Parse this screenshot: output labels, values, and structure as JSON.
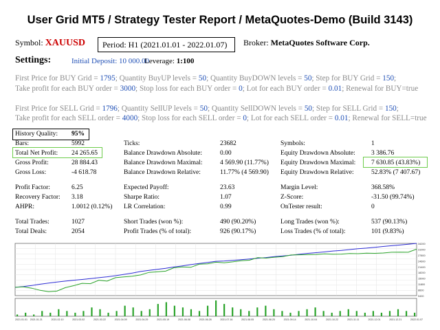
{
  "title": "User Grid MT5  /  Strategy Tester Report  /  MetaQuotes-Demo (Build 3143)",
  "symbol": {
    "label": "Symbol:",
    "value": "XAUUSD"
  },
  "period": {
    "label": "Period:",
    "value": "H1  (2021.01.01 - 2022.01.07)"
  },
  "broker": {
    "label": "Broker:",
    "value": "MetaQuotes Software Corp."
  },
  "settings": {
    "label": "Settings:",
    "deposit": "Initial Deposit:  10 000.00",
    "leverage_label": "Leverage:",
    "leverage_value": "1:100"
  },
  "params_buy": [
    [
      [
        "First Price for BUY Grid = ",
        "1795"
      ],
      [
        "; Quantity BuyUP levels = ",
        "50"
      ],
      [
        ";  Quantity BuyDOWN levels = ",
        "50"
      ],
      [
        ";  Step for BUY Grid = ",
        "150"
      ],
      [
        ";",
        ""
      ]
    ],
    [
      [
        "Take profit for each BUY order = ",
        "3000"
      ],
      [
        ";  Stop loss for each BUY order = ",
        "0"
      ],
      [
        ";  Lot for each BUY order = ",
        "0.01"
      ],
      [
        ";  Renewal for BUY=true",
        ""
      ]
    ]
  ],
  "params_sell": [
    [
      [
        "First Price for SELL Grid = ",
        "1796"
      ],
      [
        "; Quantity SellUP levels = ",
        "50"
      ],
      [
        ";  Quantity SellDOWN levels = ",
        "50"
      ],
      [
        ";  Step for SELL Grid = ",
        "150"
      ],
      [
        ";",
        ""
      ]
    ],
    [
      [
        "Take profit for each SELL order = ",
        "4000"
      ],
      [
        ";  Stop loss for each SELL order = ",
        "0"
      ],
      [
        ";  Lot for each SELL order = ",
        "0.01"
      ],
      [
        ";  Renewal for SELL=true",
        ""
      ]
    ]
  ],
  "history_quality": {
    "label": "History Quality:",
    "value": "95%"
  },
  "stats": {
    "bars": {
      "label": "Bars:",
      "value": "5992"
    },
    "net_profit": {
      "label": "Total Net Profit:",
      "value": "24 265.65"
    },
    "gross_profit": {
      "label": "Gross Profit:",
      "value": "28 884.43"
    },
    "gross_loss": {
      "label": "Gross Loss:",
      "value": "-4 618.78"
    },
    "ticks": {
      "label": "Ticks:",
      "value": "23682"
    },
    "bal_dd_abs": {
      "label": "Balance Drawdown Absolute:",
      "value": "0.00"
    },
    "bal_dd_max": {
      "label": "Balance Drawdown Maximal:",
      "value": "4 569.90 (11.77%)"
    },
    "bal_dd_rel": {
      "label": "Balance Drawdown Relative:",
      "value": "11.77% (4 569.90)"
    },
    "symbols": {
      "label": "Symbols:",
      "value": "1"
    },
    "eq_dd_abs": {
      "label": "Equity Drawdown Absolute:",
      "value": "3 386.76"
    },
    "eq_dd_max": {
      "label": "Equity Drawdown Maximal:",
      "value": "7 630.85 (43.83%)"
    },
    "eq_dd_rel": {
      "label": "Equity Drawdown Relative:",
      "value": "52.83% (7 407.67)"
    },
    "profit_factor": {
      "label": "Profit Factor:",
      "value": "6.25"
    },
    "recovery_factor": {
      "label": "Recovery Factor:",
      "value": "3.18"
    },
    "ahpr": {
      "label": "AHPR:",
      "value": "1.0012 (0.12%)"
    },
    "expected_payoff": {
      "label": "Expected Payoff:",
      "value": "23.63"
    },
    "sharpe": {
      "label": "Sharpe Ratio:",
      "value": "1.07"
    },
    "lr_corr": {
      "label": "LR Correlation:",
      "value": "0.99"
    },
    "margin_level": {
      "label": "Margin Level:",
      "value": "368.58%"
    },
    "z_score": {
      "label": "Z-Score:",
      "value": "-31.50 (99.74%)"
    },
    "ontester": {
      "label": "OnTester result:",
      "value": "0"
    },
    "total_trades": {
      "label": "Total Trades:",
      "value": "1027"
    },
    "total_deals": {
      "label": "Total Deals:",
      "value": "2054"
    },
    "short_trades": {
      "label": "Short Trades (won %):",
      "value": "490 (90.20%)"
    },
    "profit_trades": {
      "label": "Profit Trades (% of total):",
      "value": "926 (90.17%)"
    },
    "long_trades": {
      "label": "Long Trades (won %):",
      "value": "537 (90.13%)"
    },
    "loss_trades": {
      "label": "Loss Trades (% of total):",
      "value": "101 (9.83%)"
    }
  },
  "colors": {
    "balance_line": "#2b2bd4",
    "equity_line": "#2aa32a",
    "volume_bars": "#2aa32a",
    "accent_red": "#cc0000",
    "box_green": "#6ccc4a"
  },
  "chart_data": {
    "type": "line",
    "series": [
      {
        "values": [
          10000,
          10400,
          11000,
          11700,
          12300,
          12900,
          13400,
          13900,
          14300,
          14800,
          15300,
          15800,
          16400,
          17100,
          17800,
          18700,
          19300,
          19900,
          20500,
          21200,
          21800,
          22500,
          23100,
          23700,
          24300,
          24500,
          24800,
          25200,
          25600,
          26000,
          26400,
          26900,
          27300,
          27700,
          28200,
          28700,
          29100,
          29500,
          30000,
          30300,
          30800,
          31300,
          31600,
          32000,
          32500,
          32900,
          33300,
          33700,
          34200
        ]
      },
      {
        "values": [
          10000,
          10200,
          9500,
          8300,
          7600,
          7900,
          9800,
          10900,
          12200,
          12000,
          13900,
          13400,
          15300,
          15700,
          16100,
          16800,
          18200,
          18500,
          18900,
          20800,
          21200,
          21000,
          22700,
          22900,
          23800,
          23500,
          24000,
          24600,
          24900,
          26300,
          26100,
          26600,
          26900,
          27800,
          27900,
          28000,
          28100,
          28400,
          28200,
          28300,
          28600,
          28500,
          28800,
          28700,
          28900,
          29300,
          29400,
          29300,
          31000
        ]
      }
    ],
    "volume": [
      1,
      2,
      1,
      3,
      2,
      4,
      3,
      2,
      3,
      5,
      4,
      2,
      3,
      6,
      5,
      3,
      4,
      7,
      8,
      6,
      5,
      4,
      3,
      6,
      9,
      7,
      5,
      4,
      3,
      5,
      6,
      4,
      3,
      2,
      3,
      4,
      5,
      3,
      2,
      3,
      4,
      3,
      2,
      3,
      2,
      3,
      4,
      3,
      2
    ],
    "x_tick_labels": [
      "2021.01.01",
      "2021.01.21",
      "2021.02.10",
      "2021.03.02",
      "2021.03.22",
      "2021.04.09",
      "2021.04.29",
      "2021.05.19",
      "2021.06.08",
      "2021.06.28",
      "2021.07.16",
      "2021.08.05",
      "2021.08.25",
      "2021.09.14",
      "2021.10.04",
      "2021.10.22",
      "2021.11.11",
      "2021.12.01",
      "2021.12.21",
      "2022.01.07"
    ],
    "y_tick_labels": [
      "34200",
      "31000",
      "27800",
      "24600",
      "21400",
      "18200",
      "15000",
      "11800",
      "8600",
      "5400"
    ],
    "ylim": [
      5400,
      34200
    ]
  }
}
